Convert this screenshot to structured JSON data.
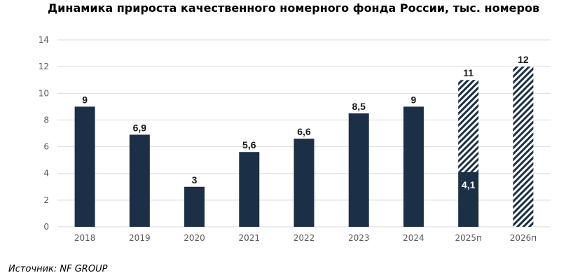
{
  "chart_data": {
    "type": "bar",
    "title": "Динамика прироста качественного номерного фонда России, тыс. номеров",
    "xlabel": "",
    "ylabel": "",
    "categories": [
      "2018",
      "2019",
      "2020",
      "2021",
      "2022",
      "2023",
      "2024",
      "2025п",
      "2026п"
    ],
    "series": [
      {
        "values": [
          9,
          6.9,
          3,
          5.6,
          6.6,
          8.5,
          9,
          4.1,
          0
        ],
        "data_labels": [
          "9",
          "6,9",
          "3",
          "5,6",
          "6,6",
          "8,5",
          "9",
          "4,1",
          ""
        ],
        "style": "solid",
        "color": "#1b2f47"
      },
      {
        "values": [
          0,
          0,
          0,
          0,
          0,
          0,
          0,
          6.9,
          12
        ],
        "style": "hatched",
        "color": "#1b2f47"
      }
    ],
    "total_labels": [
      "",
      "",
      "",
      "",
      "",
      "",
      "",
      "11",
      "12"
    ],
    "yticks": [
      "0",
      "2",
      "4",
      "6",
      "8",
      "10",
      "12",
      "14"
    ],
    "ylim": [
      0,
      14
    ],
    "grid": true,
    "legend": "none",
    "colors": {
      "bar": "#1b2f47",
      "grid": "#d9d9d9",
      "axis_text": "#595959",
      "label_dark": "#1a1a1a",
      "label_light": "#ffffff"
    }
  },
  "source": "Источник: NF GROUP"
}
